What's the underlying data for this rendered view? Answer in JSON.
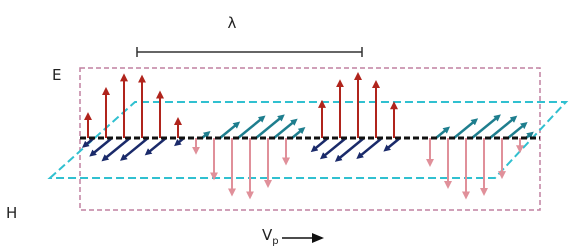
{
  "labels": {
    "wavelength": "λ",
    "electric_field": "E",
    "magnetic_field": "H",
    "velocity": "V",
    "velocity_subscript": "p"
  }
}
